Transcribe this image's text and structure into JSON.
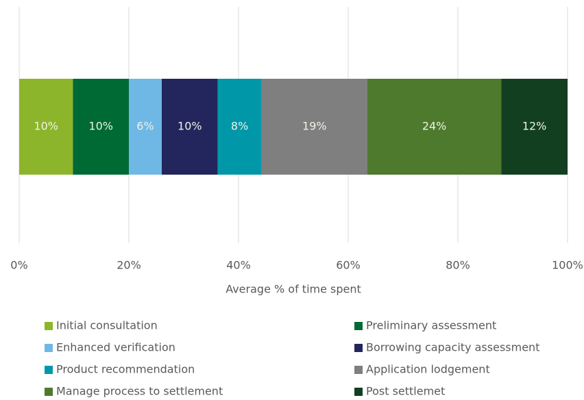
{
  "chart_data": {
    "type": "stacked-bar-horizontal",
    "xlabel": "Average % of time spent",
    "xlim": [
      0,
      100
    ],
    "xticks": [
      {
        "value": 0,
        "label": "0%"
      },
      {
        "value": 20,
        "label": "20%"
      },
      {
        "value": 40,
        "label": "40%"
      },
      {
        "value": 60,
        "label": "60%"
      },
      {
        "value": 80,
        "label": "80%"
      },
      {
        "value": 100,
        "label": "100%"
      }
    ],
    "grid": true,
    "legend": "bottom",
    "series": [
      {
        "name": "Initial consultation",
        "color": "#8db52b",
        "values": [
          9.8
        ],
        "value_labels": [
          "10%"
        ]
      },
      {
        "name": "Preliminary assessment",
        "color": "#006a35",
        "values": [
          10.2
        ],
        "value_labels": [
          "10%"
        ]
      },
      {
        "name": "Enhanced verification",
        "color": "#6fb8e6",
        "values": [
          6
        ],
        "value_labels": [
          "6%"
        ]
      },
      {
        "name": "Borrowing capacity assessment",
        "color": "#23265c",
        "values": [
          10.2
        ],
        "value_labels": [
          "10%"
        ]
      },
      {
        "name": "Product recommendation",
        "color": "#0097a9",
        "values": [
          8
        ],
        "value_labels": [
          "8%"
        ]
      },
      {
        "name": "Application lodgement",
        "color": "#7f7f7f",
        "values": [
          19.3
        ],
        "value_labels": [
          "19%"
        ]
      },
      {
        "name": "Manage process to settlement",
        "color": "#4e7a2e",
        "values": [
          24.4
        ],
        "value_labels": [
          "24%"
        ]
      },
      {
        "name": "Post settlemet",
        "color": "#133f21",
        "values": [
          12.1
        ],
        "value_labels": [
          "12%"
        ]
      }
    ]
  }
}
